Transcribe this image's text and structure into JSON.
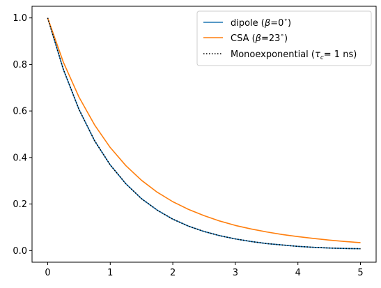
{
  "chart_data": {
    "type": "line",
    "title": "",
    "xlabel": "",
    "ylabel": "",
    "xlim": [
      -0.25,
      5.25
    ],
    "ylim": [
      -0.05,
      1.05
    ],
    "x_ticks": [
      0,
      1,
      2,
      3,
      4,
      5
    ],
    "x_tick_labels": [
      "0",
      "1",
      "2",
      "3",
      "4",
      "5"
    ],
    "y_ticks": [
      0.0,
      0.2,
      0.4,
      0.6,
      0.8,
      1.0
    ],
    "y_tick_labels": [
      "0.0",
      "0.2",
      "0.4",
      "0.6",
      "0.8",
      "1.0"
    ],
    "grid": false,
    "legend_position": "top-right",
    "x": [
      0,
      0.25,
      0.5,
      0.75,
      1,
      1.25,
      1.5,
      1.75,
      2,
      2.25,
      2.5,
      2.75,
      3,
      3.25,
      3.5,
      3.75,
      4,
      4.25,
      4.5,
      4.75,
      5
    ],
    "series": [
      {
        "name_parts": {
          "prefix": "dipole (",
          "beta": "β",
          "value": "=0",
          "deg": "∘",
          "suffix": ")"
        },
        "color": "#1f77b4",
        "style": "solid",
        "values": [
          1.0,
          0.779,
          0.607,
          0.472,
          0.368,
          0.287,
          0.223,
          0.174,
          0.135,
          0.105,
          0.082,
          0.064,
          0.05,
          0.039,
          0.03,
          0.024,
          0.018,
          0.014,
          0.011,
          0.009,
          0.008
        ]
      },
      {
        "name_parts": {
          "prefix": "CSA (",
          "beta": "β",
          "value": "=23",
          "deg": "∘",
          "suffix": ")"
        },
        "color": "#ff7f0e",
        "style": "solid",
        "values": [
          1.0,
          0.81,
          0.66,
          0.54,
          0.443,
          0.365,
          0.302,
          0.251,
          0.21,
          0.177,
          0.15,
          0.127,
          0.108,
          0.093,
          0.08,
          0.069,
          0.06,
          0.052,
          0.045,
          0.039,
          0.034
        ]
      },
      {
        "name_parts": {
          "prefix": "Monoexponential (",
          "tau": "τ",
          "sub": "c",
          "suffix": "= 1 ns)"
        },
        "color": "#000000",
        "style": "dotted",
        "values": [
          1.0,
          0.779,
          0.607,
          0.472,
          0.368,
          0.287,
          0.223,
          0.174,
          0.135,
          0.105,
          0.082,
          0.064,
          0.05,
          0.039,
          0.03,
          0.024,
          0.018,
          0.014,
          0.011,
          0.009,
          0.008
        ]
      }
    ]
  }
}
